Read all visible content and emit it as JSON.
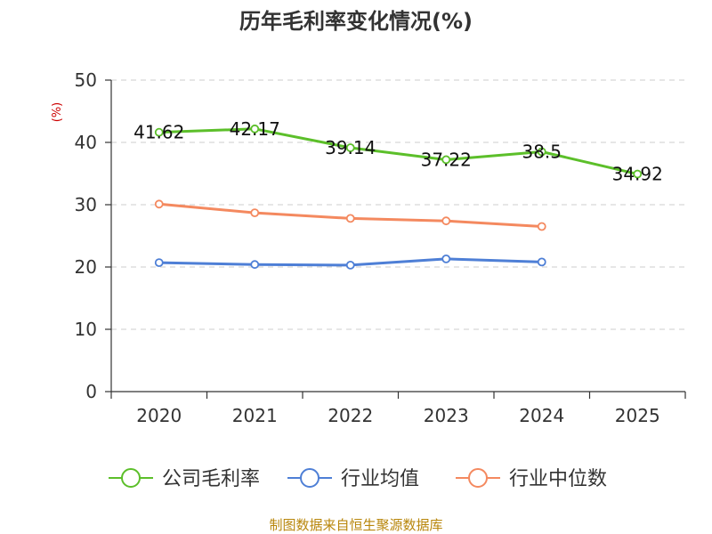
{
  "chart_data": {
    "type": "line",
    "title": "历年毛利率变化情况(%)",
    "ylabel": "(%)",
    "xlabel": "",
    "categories": [
      "2020",
      "2021",
      "2022",
      "2023",
      "2024",
      "2025"
    ],
    "yticks": [
      "0",
      "10",
      "20",
      "30",
      "40",
      "50"
    ],
    "ylim": [
      0,
      50
    ],
    "grid": true,
    "legend_position": "bottom",
    "series": [
      {
        "name": "公司毛利率",
        "color": "#5cbf2a",
        "values": [
          41.62,
          42.17,
          39.14,
          37.22,
          38.5,
          34.92
        ],
        "labels": [
          "41.62",
          "42.17",
          "39.14",
          "37.22",
          "38.5",
          "34.92"
        ]
      },
      {
        "name": "行业均值",
        "color": "#4e7fd6",
        "values": [
          20.7,
          20.4,
          20.3,
          21.3,
          20.8,
          null
        ]
      },
      {
        "name": "行业中位数",
        "color": "#f4895f",
        "values": [
          30.1,
          28.7,
          27.8,
          27.4,
          26.5,
          null
        ]
      }
    ]
  },
  "footer": {
    "source": "制图数据来自恒生聚源数据库"
  }
}
